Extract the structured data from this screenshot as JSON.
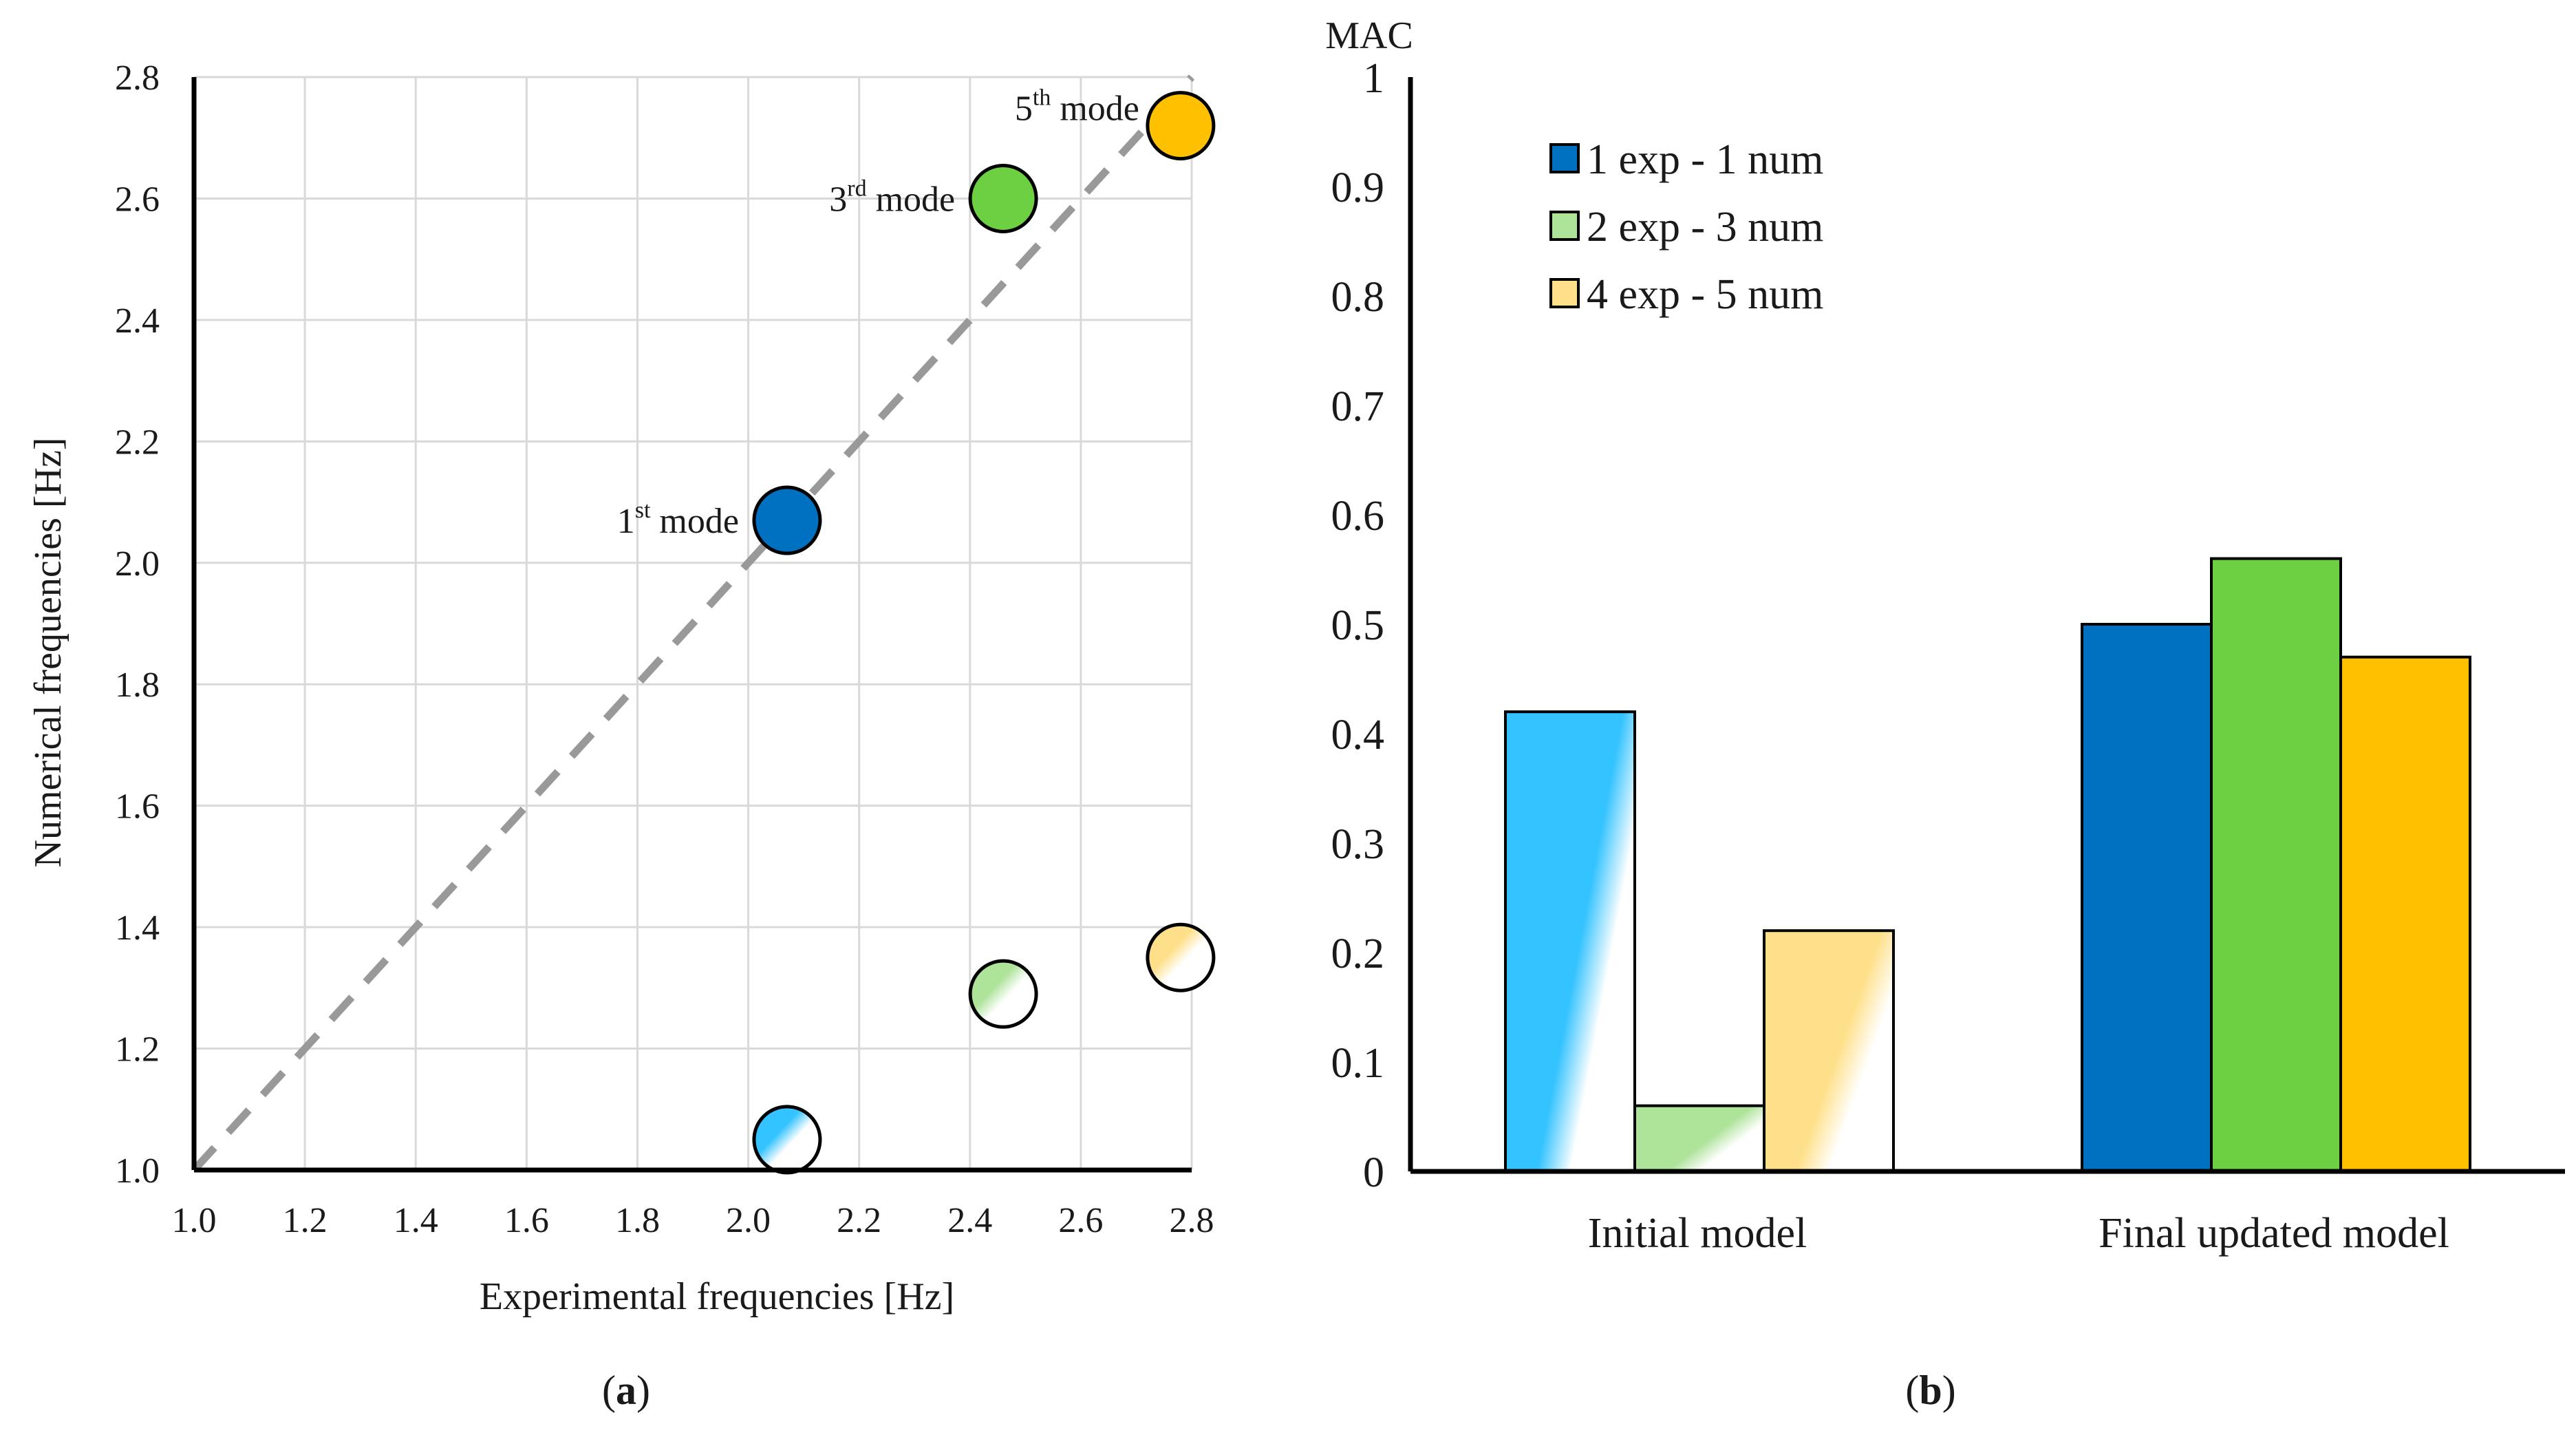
{
  "chart_data": [
    {
      "type": "scatter",
      "xlabel": "Experimental frequencies [Hz]",
      "ylabel": "Numerical frequencies [Hz]",
      "xlim": [
        1.0,
        2.8
      ],
      "ylim": [
        1.0,
        2.8
      ],
      "xticks": [
        "1.0",
        "1.2",
        "1.4",
        "1.6",
        "1.8",
        "2.0",
        "2.2",
        "2.4",
        "2.6",
        "2.8"
      ],
      "yticks": [
        "1.0",
        "1.2",
        "1.4",
        "1.6",
        "1.8",
        "2.0",
        "2.2",
        "2.4",
        "2.6",
        "2.8"
      ],
      "grid": true,
      "reference_line": {
        "from": [
          1.0,
          1.0
        ],
        "to": [
          2.8,
          2.8
        ],
        "style": "dashed",
        "color": "#999999"
      },
      "series": [
        {
          "name": "Initial model",
          "style": "faded",
          "points": [
            {
              "x": 2.07,
              "y": 1.05,
              "color": "#33c3ff"
            },
            {
              "x": 2.46,
              "y": 1.29,
              "color": "#aee39a"
            },
            {
              "x": 2.78,
              "y": 1.35,
              "color": "#ffe08a"
            }
          ]
        },
        {
          "name": "Final updated model",
          "style": "solid",
          "points": [
            {
              "x": 2.07,
              "y": 2.07,
              "color": "#0070c0"
            },
            {
              "x": 2.46,
              "y": 2.6,
              "color": "#6dcf42"
            },
            {
              "x": 2.78,
              "y": 2.72,
              "color": "#ffc000"
            }
          ]
        }
      ],
      "annotations": [
        {
          "base": "1",
          "sup": "st",
          "rest": " mode"
        },
        {
          "base": "3",
          "sup": "rd",
          "rest": " mode"
        },
        {
          "base": "5",
          "sup": "th",
          "rest": " mode"
        }
      ],
      "panel_label": "a"
    },
    {
      "type": "bar",
      "title": "MAC",
      "categories": [
        "Initial model",
        "Final updated model"
      ],
      "ylim": [
        0,
        1
      ],
      "yticks": [
        "0",
        "0.1",
        "0.2",
        "0.3",
        "0.4",
        "0.5",
        "0.6",
        "0.7",
        "0.8",
        "0.9",
        "1"
      ],
      "series": [
        {
          "name": "1 exp - 1 num",
          "color": "#0070c0",
          "faded_color": "#33c3ff",
          "values": [
            0.42,
            0.5
          ]
        },
        {
          "name": "2 exp - 3 num",
          "color": "#6dcf42",
          "faded_color": "#aee39a",
          "values": [
            0.06,
            0.56
          ]
        },
        {
          "name": "4 exp - 5 num",
          "color": "#ffc000",
          "faded_color": "#ffe08a",
          "values": [
            0.22,
            0.47
          ]
        }
      ],
      "legend_position": "top-left",
      "panel_label": "b"
    }
  ]
}
